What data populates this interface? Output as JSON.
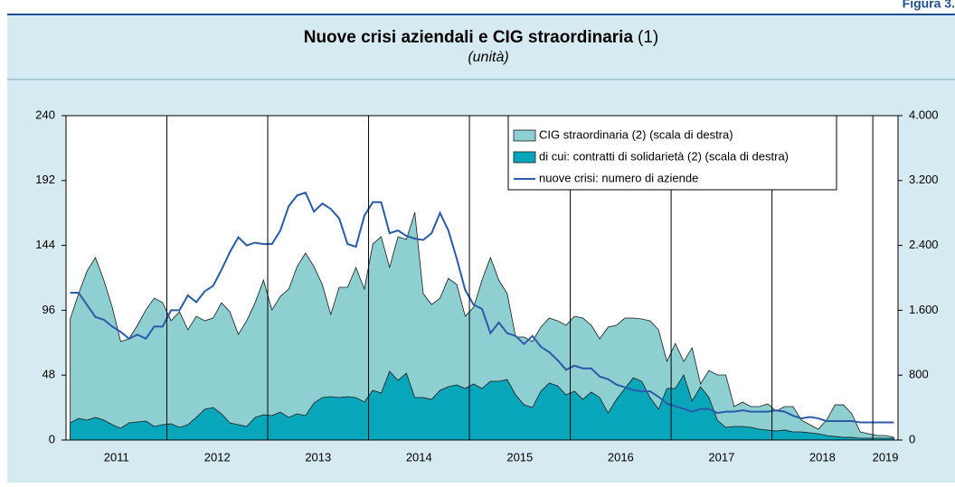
{
  "figure_label": "Figura 3.",
  "chart_data": {
    "type": "area",
    "title": "Nuove crisi aziendali e CIG straordinaria",
    "title_note": "(1)",
    "subtitle": "(unità)",
    "categories": [
      "2011",
      null,
      null,
      null,
      null,
      null,
      null,
      null,
      null,
      null,
      null,
      null,
      "2012",
      null,
      null,
      null,
      null,
      null,
      null,
      null,
      null,
      null,
      null,
      null,
      "2013",
      null,
      null,
      null,
      null,
      null,
      null,
      null,
      null,
      null,
      null,
      null,
      "2014",
      null,
      null,
      null,
      null,
      null,
      null,
      null,
      null,
      null,
      null,
      null,
      "2015",
      null,
      null,
      null,
      null,
      null,
      null,
      null,
      null,
      null,
      null,
      null,
      "2016",
      null,
      null,
      null,
      null,
      null,
      null,
      null,
      null,
      null,
      null,
      null,
      "2017",
      null,
      null,
      null,
      null,
      null,
      null,
      null,
      null,
      null,
      null,
      null,
      "2018",
      null,
      null,
      null,
      null,
      null,
      null,
      null,
      null,
      null,
      null,
      null,
      "2019",
      null,
      null
    ],
    "ylim": [
      0,
      240
    ],
    "yticks": [
      0,
      48,
      96,
      144,
      192,
      240
    ],
    "y2lim": [
      0,
      4000
    ],
    "y2ticks": [
      0,
      800,
      {
        "value": 1600,
        "label": "1.600"
      },
      {
        "value": 2400,
        "label": "2.400"
      },
      {
        "value": 3200,
        "label": "3.200"
      },
      {
        "value": 4000,
        "label": "4.000"
      }
    ],
    "grid": "x",
    "legend": "top-right",
    "series": [
      {
        "name": "CIG straordinaria (2) (scala di destra)",
        "type": "area",
        "axis": "y2",
        "color": "#8ecfd2",
        "values": [
          1493,
          1805,
          2083,
          2250,
          1972,
          1638,
          1214,
          1248,
          1415,
          1604,
          1749,
          1693,
          1470,
          1582,
          1359,
          1526,
          1470,
          1504,
          1693,
          1582,
          1303,
          1470,
          1693,
          1972,
          1604,
          1771,
          1860,
          2139,
          2306,
          2139,
          1916,
          1548,
          1883,
          1883,
          2128,
          1860,
          2417,
          2507,
          2128,
          2507,
          2473,
          2807,
          1805,
          1671,
          1749,
          1994,
          1916,
          1526,
          1637,
          1972,
          2250,
          1972,
          1805,
          1270,
          1270,
          1214,
          1393,
          1504,
          1470,
          1415,
          1526,
          1504,
          1415,
          1248,
          1393,
          1415,
          1504,
          1504,
          1493,
          1470,
          1359,
          969,
          1192,
          969,
          1136,
          691,
          858,
          802,
          802,
          412,
          468,
          412,
          412,
          446,
          356,
          412,
          412,
          245,
          189,
          134,
          245,
          434,
          434,
          323,
          100,
          78,
          56,
          56,
          33
        ]
      },
      {
        "name": "di cui: contratti di solidarietà (2) (scala di destra)",
        "type": "area",
        "axis": "y2",
        "color": "#08a6ba",
        "values": [
          212,
          267,
          245,
          279,
          245,
          189,
          145,
          212,
          223,
          234,
          167,
          189,
          200,
          156,
          189,
          279,
          379,
          401,
          323,
          212,
          189,
          167,
          279,
          312,
          301,
          345,
          279,
          323,
          301,
          457,
          524,
          535,
          524,
          535,
          524,
          468,
          613,
          579,
          847,
          735,
          824,
          524,
          524,
          501,
          613,
          657,
          679,
          635,
          691,
          635,
          724,
          724,
          746,
          557,
          434,
          401,
          602,
          702,
          668,
          557,
          602,
          501,
          590,
          524,
          334,
          501,
          635,
          769,
          724,
          524,
          379,
          635,
          635,
          802,
          479,
          657,
          524,
          245,
          156,
          167,
          167,
          156,
          134,
          123,
          111,
          123,
          100,
          100,
          89,
          78,
          56,
          45,
          33,
          33,
          22,
          22,
          22,
          22,
          22
        ]
      },
      {
        "name": "nuove crisi: numero di aziende",
        "type": "line",
        "color": "#2b5aa8",
        "values": [
          109,
          109,
          100,
          91,
          89,
          84,
          80,
          75,
          78,
          75,
          84,
          84,
          96,
          96,
          107,
          102,
          110,
          114,
          126,
          139,
          150,
          144,
          146,
          145,
          145,
          155,
          173,
          181,
          183,
          169,
          175,
          171,
          164,
          145,
          143,
          166,
          176,
          176,
          153,
          155,
          151,
          149,
          148,
          153,
          168,
          155,
          134,
          111,
          100,
          97,
          79,
          87,
          79,
          77,
          71,
          77,
          69,
          65,
          59,
          52,
          55,
          53,
          53,
          47,
          45,
          41,
          39,
          37,
          36,
          36,
          32,
          27,
          25,
          23,
          21,
          23,
          23,
          20,
          21,
          21,
          22,
          21,
          21,
          21,
          22,
          21,
          18,
          16,
          17,
          16,
          14,
          14,
          14,
          14,
          13,
          13,
          13,
          13,
          13
        ]
      }
    ]
  }
}
